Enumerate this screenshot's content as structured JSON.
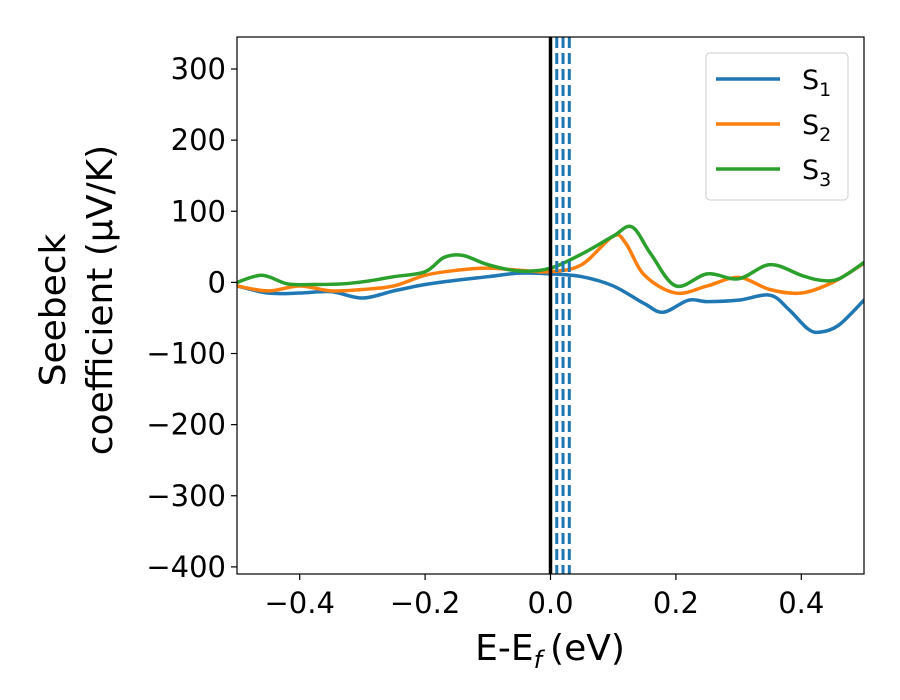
{
  "chart_data": {
    "type": "line",
    "xlabel": "E-E",
    "xlabel_sub": "f",
    "xlabel_unit": "(eV)",
    "ylabel_line1": "Seebeck",
    "ylabel_line2": "coefficient  (μV/K)",
    "xlim": [
      -0.5,
      0.5
    ],
    "ylim": [
      -410,
      345
    ],
    "xticks": [
      -0.4,
      -0.2,
      0.0,
      0.2,
      0.4
    ],
    "xtick_labels": [
      "−0.4",
      "−0.2",
      "0.0",
      "0.2",
      "0.4"
    ],
    "yticks": [
      -400,
      -300,
      -200,
      -100,
      0,
      100,
      200,
      300
    ],
    "ytick_labels": [
      "−400",
      "−300",
      "−200",
      "−100",
      "0",
      "100",
      "200",
      "300"
    ],
    "grid": false,
    "legend_position": "top-right",
    "vertical_lines": [
      {
        "x": 0.0,
        "color": "#000000",
        "style": "solid"
      },
      {
        "x": 0.01,
        "color": "#1f77b4",
        "style": "dashed"
      },
      {
        "x": 0.02,
        "color": "#1f77b4",
        "style": "dashed"
      },
      {
        "x": 0.03,
        "color": "#1f77b4",
        "style": "dashed"
      }
    ],
    "series": [
      {
        "name": "S",
        "sub": "1",
        "color": "#1f77b4",
        "x": [
          -0.5,
          -0.45,
          -0.4,
          -0.35,
          -0.3,
          -0.25,
          -0.2,
          -0.15,
          -0.1,
          -0.05,
          0.0,
          0.05,
          0.1,
          0.15,
          0.18,
          0.22,
          0.25,
          0.3,
          0.35,
          0.38,
          0.41,
          0.43,
          0.46,
          0.5
        ],
        "y": [
          -5,
          -15,
          -15,
          -13,
          -22,
          -12,
          -3,
          3,
          8,
          13,
          12,
          8,
          -5,
          -30,
          -42,
          -25,
          -27,
          -25,
          -18,
          -38,
          -65,
          -70,
          -60,
          -25
        ]
      },
      {
        "name": "S",
        "sub": "2",
        "color": "#ff7f0e",
        "x": [
          -0.5,
          -0.45,
          -0.4,
          -0.35,
          -0.3,
          -0.25,
          -0.2,
          -0.15,
          -0.1,
          -0.05,
          0.0,
          0.05,
          0.1,
          0.12,
          0.15,
          0.2,
          0.25,
          0.3,
          0.35,
          0.4,
          0.45,
          0.5
        ],
        "y": [
          -5,
          -12,
          -5,
          -12,
          -10,
          -5,
          10,
          17,
          20,
          17,
          15,
          25,
          65,
          55,
          10,
          -15,
          -5,
          7,
          -10,
          -15,
          0,
          27
        ]
      },
      {
        "name": "S",
        "sub": "3",
        "color": "#2ca02c",
        "x": [
          -0.5,
          -0.46,
          -0.42,
          -0.38,
          -0.33,
          -0.29,
          -0.25,
          -0.2,
          -0.17,
          -0.14,
          -0.1,
          -0.05,
          0.0,
          0.05,
          0.1,
          0.13,
          0.16,
          0.2,
          0.25,
          0.3,
          0.35,
          0.4,
          0.43,
          0.46,
          0.5
        ],
        "y": [
          0,
          10,
          -2,
          -3,
          -2,
          2,
          8,
          15,
          35,
          38,
          25,
          16,
          20,
          40,
          65,
          78,
          40,
          -5,
          12,
          5,
          25,
          10,
          3,
          5,
          28
        ]
      }
    ]
  }
}
